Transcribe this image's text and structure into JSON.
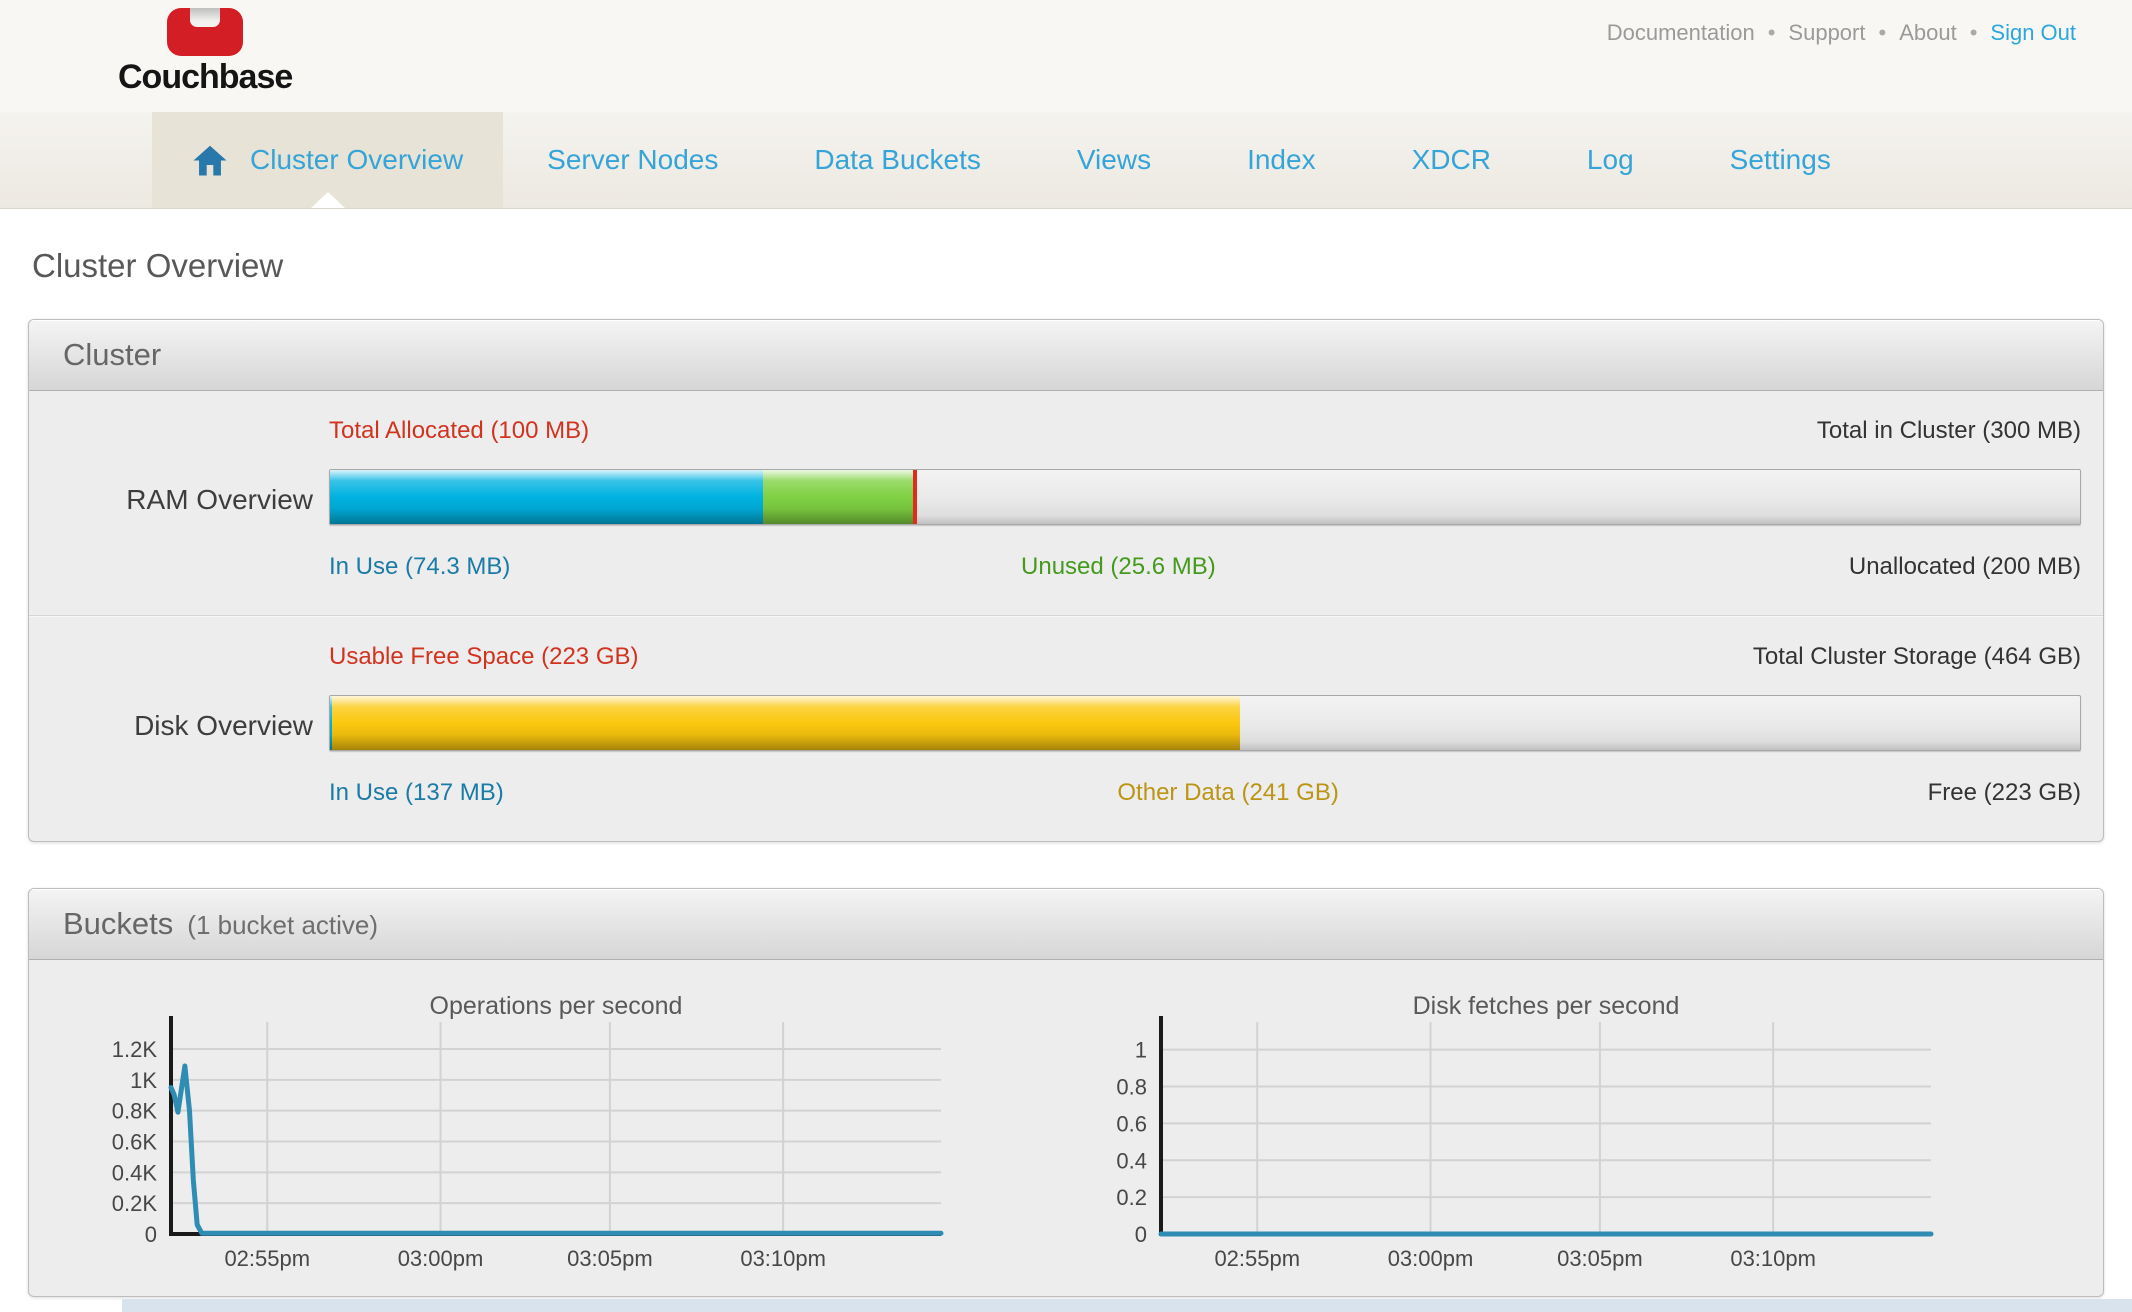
{
  "header": {
    "logo_text": "Couchbase",
    "links": [
      {
        "label": "Documentation",
        "type": "link"
      },
      {
        "label": "Support",
        "type": "link"
      },
      {
        "label": "About",
        "type": "link"
      },
      {
        "label": "Sign Out",
        "type": "signout"
      }
    ]
  },
  "nav": {
    "tabs": [
      {
        "label": "Cluster Overview",
        "active": true
      },
      {
        "label": "Server Nodes",
        "active": false
      },
      {
        "label": "Data Buckets",
        "active": false
      },
      {
        "label": "Views",
        "active": false
      },
      {
        "label": "Index",
        "active": false
      },
      {
        "label": "XDCR",
        "active": false
      },
      {
        "label": "Log",
        "active": false
      },
      {
        "label": "Settings",
        "active": false
      }
    ]
  },
  "page_title": "Cluster Overview",
  "colors": {
    "nav_blue": "#35a4d8",
    "logo_red": "#d31e25",
    "label_red": "#d2331f",
    "label_blue": "#1a7ba6",
    "label_green": "#459a1d",
    "label_gold": "#bb9513",
    "ram_in_use_blue": "#00b2e1",
    "ram_unused_green": "#7fd143",
    "disk_other_yellow": "#fbc70e",
    "quota_marker_red": "#e02b1d",
    "chart_line_teal": "#2f8cb3"
  },
  "cluster_panel": {
    "title": "Cluster",
    "ram": {
      "row_label": "RAM Overview",
      "top_left": "Total Allocated (100 MB)",
      "top_right": "Total in Cluster (300 MB)",
      "bottom_left": "In Use (74.3 MB)",
      "bottom_mid": "Unused (25.6 MB)",
      "bottom_right": "Unallocated (200 MB)",
      "segments": [
        {
          "name": "in-use",
          "pct": 24.77,
          "color": "#00b2e1"
        },
        {
          "name": "unused",
          "pct": 8.53,
          "color": "#7fd143"
        }
      ],
      "marker_pct": 33.33,
      "marker_color": "#e02b1d"
    },
    "disk": {
      "row_label": "Disk Overview",
      "top_left": "Usable Free Space (223 GB)",
      "top_right": "Total Cluster Storage (464 GB)",
      "bottom_left": "In Use (137 MB)",
      "bottom_mid": "Other Data (241 GB)",
      "bottom_right": "Free (223 GB)",
      "segments": [
        {
          "name": "in-use",
          "pct": 0.1,
          "color": "#00b2e1"
        },
        {
          "name": "other-data",
          "pct": 51.9,
          "color": "#fbc70e"
        }
      ],
      "marker_pct": null,
      "marker_color": null
    }
  },
  "buckets_panel": {
    "title": "Buckets",
    "subtitle": "(1 bucket active)"
  },
  "chart_data": [
    {
      "type": "line",
      "title": "Operations per second",
      "x_ticks": [
        "02:55pm",
        "03:00pm",
        "03:05pm",
        "03:10pm"
      ],
      "x_tick_pos": [
        0.125,
        0.35,
        0.57,
        0.795
      ],
      "y_ticks": [
        "1.2K",
        "1K",
        "0.8K",
        "0.6K",
        "0.4K",
        "0.2K",
        "0"
      ],
      "y_tick_values": [
        1200,
        1000,
        800,
        600,
        400,
        200,
        0
      ],
      "y_max": 1375,
      "ylim": [
        0,
        1375
      ],
      "grid": true,
      "legend": "none",
      "line_color": "#2f8cb3",
      "series": [
        {
          "name": "ops-per-second",
          "points": [
            [
              0,
              950
            ],
            [
              0.004,
              905
            ],
            [
              0.009,
              790
            ],
            [
              0.018,
              1090
            ],
            [
              0.024,
              800
            ],
            [
              0.029,
              350
            ],
            [
              0.034,
              60
            ],
            [
              0.04,
              5
            ],
            [
              1,
              5
            ]
          ]
        }
      ]
    },
    {
      "type": "line",
      "title": "Disk fetches per second",
      "x_ticks": [
        "02:55pm",
        "03:00pm",
        "03:05pm",
        "03:10pm"
      ],
      "x_tick_pos": [
        0.125,
        0.35,
        0.57,
        0.795
      ],
      "y_ticks": [
        "1",
        "0.8",
        "0.6",
        "0.4",
        "0.2",
        "0"
      ],
      "y_tick_values": [
        1,
        0.8,
        0.6,
        0.4,
        0.2,
        0
      ],
      "y_max": 1.15,
      "ylim": [
        0,
        1.15
      ],
      "grid": true,
      "legend": "none",
      "line_color": "#2f8cb3",
      "series": [
        {
          "name": "disk-fetches-per-second",
          "points": [
            [
              0,
              0
            ],
            [
              1,
              0
            ]
          ]
        }
      ]
    }
  ]
}
